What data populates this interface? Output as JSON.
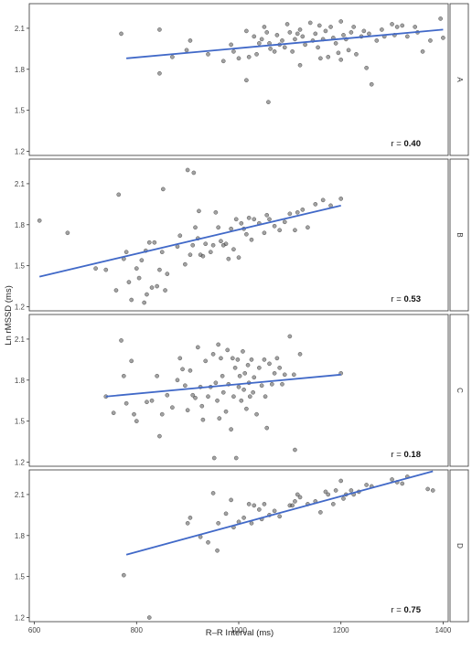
{
  "chart_data": {
    "type": "scatter",
    "title": "",
    "xlabel": "R–R Interval (ms)",
    "ylabel": "Ln rMSSD (ms)",
    "x_ticks": [
      600,
      800,
      1000,
      1200,
      1400
    ],
    "y_ticks": [
      1.2,
      1.5,
      1.8,
      2.1
    ],
    "xlim": [
      590,
      1410
    ],
    "ylim": [
      1.17,
      2.28
    ],
    "grid": false,
    "fit_color": "#4169c8",
    "point_color": "#555555",
    "panels": [
      {
        "strip_label": "A",
        "r_label": "r = ",
        "r_value": "0.40",
        "fit": {
          "x": [
            780,
            1400
          ],
          "y": [
            1.88,
            2.09
          ]
        },
        "points": [
          [
            770,
            2.06
          ],
          [
            845,
            2.09
          ],
          [
            845,
            1.77
          ],
          [
            870,
            1.89
          ],
          [
            898,
            1.94
          ],
          [
            905,
            2.01
          ],
          [
            940,
            1.91
          ],
          [
            970,
            1.86
          ],
          [
            985,
            1.98
          ],
          [
            990,
            1.93
          ],
          [
            1000,
            1.88
          ],
          [
            1015,
            1.72
          ],
          [
            1015,
            2.08
          ],
          [
            1020,
            1.89
          ],
          [
            1030,
            2.04
          ],
          [
            1035,
            1.91
          ],
          [
            1040,
            1.99
          ],
          [
            1045,
            2.02
          ],
          [
            1050,
            2.11
          ],
          [
            1055,
            2.07
          ],
          [
            1058,
            1.56
          ],
          [
            1060,
            1.99
          ],
          [
            1062,
            1.95
          ],
          [
            1070,
            1.93
          ],
          [
            1075,
            2.05
          ],
          [
            1080,
            1.98
          ],
          [
            1085,
            2.01
          ],
          [
            1090,
            1.96
          ],
          [
            1095,
            2.13
          ],
          [
            1100,
            2.07
          ],
          [
            1105,
            1.93
          ],
          [
            1110,
            2.02
          ],
          [
            1115,
            2.06
          ],
          [
            1120,
            2.09
          ],
          [
            1120,
            1.83
          ],
          [
            1125,
            2.04
          ],
          [
            1130,
            1.98
          ],
          [
            1140,
            2.14
          ],
          [
            1145,
            2.01
          ],
          [
            1150,
            2.06
          ],
          [
            1155,
            1.96
          ],
          [
            1158,
            2.12
          ],
          [
            1160,
            1.88
          ],
          [
            1165,
            2.02
          ],
          [
            1170,
            2.08
          ],
          [
            1175,
            1.89
          ],
          [
            1180,
            2.11
          ],
          [
            1185,
            2.03
          ],
          [
            1190,
            1.99
          ],
          [
            1195,
            1.92
          ],
          [
            1200,
            2.15
          ],
          [
            1200,
            1.87
          ],
          [
            1205,
            2.05
          ],
          [
            1210,
            2.02
          ],
          [
            1215,
            1.94
          ],
          [
            1220,
            2.07
          ],
          [
            1225,
            2.11
          ],
          [
            1230,
            1.91
          ],
          [
            1240,
            2.04
          ],
          [
            1245,
            2.08
          ],
          [
            1250,
            1.81
          ],
          [
            1255,
            2.06
          ],
          [
            1260,
            1.69
          ],
          [
            1270,
            2.01
          ],
          [
            1280,
            2.09
          ],
          [
            1285,
            2.04
          ],
          [
            1300,
            2.13
          ],
          [
            1305,
            2.05
          ],
          [
            1310,
            2.11
          ],
          [
            1320,
            2.12
          ],
          [
            1330,
            2.04
          ],
          [
            1345,
            2.11
          ],
          [
            1350,
            2.07
          ],
          [
            1360,
            1.93
          ],
          [
            1375,
            2.01
          ],
          [
            1395,
            2.17
          ],
          [
            1400,
            2.03
          ]
        ]
      },
      {
        "strip_label": "B",
        "r_label": "r = ",
        "r_value": "0.53",
        "fit": {
          "x": [
            610,
            1200
          ],
          "y": [
            1.42,
            1.94
          ]
        },
        "points": [
          [
            610,
            1.83
          ],
          [
            665,
            1.74
          ],
          [
            720,
            1.48
          ],
          [
            740,
            1.47
          ],
          [
            760,
            1.32
          ],
          [
            765,
            2.02
          ],
          [
            775,
            1.55
          ],
          [
            780,
            1.6
          ],
          [
            785,
            1.38
          ],
          [
            790,
            1.25
          ],
          [
            800,
            1.48
          ],
          [
            805,
            1.41
          ],
          [
            810,
            1.54
          ],
          [
            815,
            1.23
          ],
          [
            818,
            1.61
          ],
          [
            820,
            1.29
          ],
          [
            825,
            1.67
          ],
          [
            830,
            1.34
          ],
          [
            835,
            1.67
          ],
          [
            840,
            1.35
          ],
          [
            845,
            1.47
          ],
          [
            850,
            1.6
          ],
          [
            852,
            2.06
          ],
          [
            856,
            1.32
          ],
          [
            860,
            1.44
          ],
          [
            880,
            1.64
          ],
          [
            885,
            1.72
          ],
          [
            895,
            1.51
          ],
          [
            900,
            2.2
          ],
          [
            905,
            1.58
          ],
          [
            910,
            1.65
          ],
          [
            912,
            2.18
          ],
          [
            915,
            1.78
          ],
          [
            920,
            1.7
          ],
          [
            922,
            1.9
          ],
          [
            925,
            1.58
          ],
          [
            930,
            1.57
          ],
          [
            935,
            1.66
          ],
          [
            945,
            1.6
          ],
          [
            950,
            1.65
          ],
          [
            955,
            1.89
          ],
          [
            960,
            1.78
          ],
          [
            965,
            1.68
          ],
          [
            970,
            1.65
          ],
          [
            975,
            1.66
          ],
          [
            980,
            1.55
          ],
          [
            985,
            1.77
          ],
          [
            990,
            1.62
          ],
          [
            995,
            1.84
          ],
          [
            1000,
            1.56
          ],
          [
            1005,
            1.81
          ],
          [
            1010,
            1.77
          ],
          [
            1015,
            1.73
          ],
          [
            1020,
            1.85
          ],
          [
            1025,
            1.69
          ],
          [
            1030,
            1.84
          ],
          [
            1040,
            1.81
          ],
          [
            1050,
            1.74
          ],
          [
            1055,
            1.87
          ],
          [
            1060,
            1.84
          ],
          [
            1070,
            1.79
          ],
          [
            1080,
            1.76
          ],
          [
            1090,
            1.82
          ],
          [
            1100,
            1.88
          ],
          [
            1110,
            1.76
          ],
          [
            1115,
            1.89
          ],
          [
            1125,
            1.91
          ],
          [
            1135,
            1.78
          ],
          [
            1150,
            1.95
          ],
          [
            1165,
            1.98
          ],
          [
            1180,
            1.94
          ],
          [
            1200,
            1.99
          ]
        ]
      },
      {
        "strip_label": "C",
        "r_label": "r = ",
        "r_value": "0.18",
        "fit": {
          "x": [
            740,
            1200
          ],
          "y": [
            1.68,
            1.84
          ]
        },
        "points": [
          [
            740,
            1.68
          ],
          [
            755,
            1.56
          ],
          [
            770,
            2.09
          ],
          [
            775,
            1.83
          ],
          [
            780,
            1.63
          ],
          [
            790,
            1.94
          ],
          [
            795,
            1.55
          ],
          [
            800,
            1.5
          ],
          [
            820,
            1.64
          ],
          [
            830,
            1.65
          ],
          [
            840,
            1.83
          ],
          [
            845,
            1.39
          ],
          [
            850,
            1.55
          ],
          [
            860,
            1.69
          ],
          [
            870,
            1.6
          ],
          [
            880,
            1.8
          ],
          [
            885,
            1.96
          ],
          [
            890,
            1.88
          ],
          [
            895,
            1.76
          ],
          [
            900,
            1.58
          ],
          [
            905,
            1.87
          ],
          [
            910,
            1.69
          ],
          [
            915,
            1.67
          ],
          [
            920,
            2.04
          ],
          [
            925,
            1.75
          ],
          [
            928,
            1.61
          ],
          [
            930,
            1.51
          ],
          [
            935,
            1.94
          ],
          [
            940,
            1.68
          ],
          [
            945,
            1.75
          ],
          [
            950,
            1.99
          ],
          [
            952,
            1.23
          ],
          [
            955,
            1.78
          ],
          [
            958,
            1.65
          ],
          [
            960,
            2.06
          ],
          [
            962,
            1.52
          ],
          [
            965,
            1.96
          ],
          [
            968,
            1.83
          ],
          [
            970,
            1.71
          ],
          [
            975,
            1.57
          ],
          [
            978,
            2.02
          ],
          [
            980,
            1.77
          ],
          [
            985,
            1.44
          ],
          [
            988,
            1.96
          ],
          [
            990,
            1.68
          ],
          [
            993,
            1.89
          ],
          [
            995,
            1.23
          ],
          [
            998,
            1.95
          ],
          [
            1000,
            1.75
          ],
          [
            1002,
            1.83
          ],
          [
            1005,
            1.65
          ],
          [
            1008,
            2.01
          ],
          [
            1010,
            1.73
          ],
          [
            1012,
            1.85
          ],
          [
            1015,
            1.59
          ],
          [
            1018,
            1.91
          ],
          [
            1020,
            1.78
          ],
          [
            1022,
            1.68
          ],
          [
            1025,
            1.95
          ],
          [
            1028,
            1.71
          ],
          [
            1030,
            1.82
          ],
          [
            1035,
            1.55
          ],
          [
            1040,
            1.89
          ],
          [
            1045,
            1.76
          ],
          [
            1050,
            1.95
          ],
          [
            1052,
            1.68
          ],
          [
            1055,
            1.45
          ],
          [
            1060,
            1.92
          ],
          [
            1065,
            1.77
          ],
          [
            1070,
            1.85
          ],
          [
            1075,
            1.96
          ],
          [
            1080,
            1.89
          ],
          [
            1085,
            1.77
          ],
          [
            1090,
            1.84
          ],
          [
            1100,
            2.12
          ],
          [
            1108,
            1.84
          ],
          [
            1110,
            1.29
          ],
          [
            1120,
            1.99
          ],
          [
            1200,
            1.85
          ]
        ]
      },
      {
        "strip_label": "D",
        "r_label": "r = ",
        "r_value": "0.75",
        "fit": {
          "x": [
            780,
            1380
          ],
          "y": [
            1.66,
            2.27
          ]
        },
        "points": [
          [
            775,
            1.51
          ],
          [
            825,
            1.2
          ],
          [
            900,
            1.89
          ],
          [
            905,
            1.93
          ],
          [
            925,
            1.79
          ],
          [
            940,
            1.75
          ],
          [
            950,
            2.11
          ],
          [
            958,
            1.69
          ],
          [
            960,
            1.89
          ],
          [
            975,
            1.96
          ],
          [
            985,
            2.06
          ],
          [
            990,
            1.86
          ],
          [
            1000,
            1.9
          ],
          [
            1010,
            1.93
          ],
          [
            1020,
            2.03
          ],
          [
            1025,
            1.89
          ],
          [
            1030,
            2.02
          ],
          [
            1040,
            1.99
          ],
          [
            1045,
            1.92
          ],
          [
            1050,
            2.03
          ],
          [
            1060,
            1.95
          ],
          [
            1070,
            1.98
          ],
          [
            1080,
            1.94
          ],
          [
            1100,
            2.02
          ],
          [
            1105,
            2.02
          ],
          [
            1110,
            2.05
          ],
          [
            1115,
            2.1
          ],
          [
            1120,
            2.08
          ],
          [
            1135,
            2.03
          ],
          [
            1150,
            2.05
          ],
          [
            1160,
            1.97
          ],
          [
            1170,
            2.12
          ],
          [
            1175,
            2.1
          ],
          [
            1185,
            2.03
          ],
          [
            1190,
            2.13
          ],
          [
            1200,
            2.2
          ],
          [
            1205,
            2.07
          ],
          [
            1210,
            2.1
          ],
          [
            1220,
            2.13
          ],
          [
            1225,
            2.1
          ],
          [
            1235,
            2.12
          ],
          [
            1250,
            2.17
          ],
          [
            1260,
            2.16
          ],
          [
            1300,
            2.21
          ],
          [
            1310,
            2.19
          ],
          [
            1320,
            2.18
          ],
          [
            1330,
            2.23
          ],
          [
            1370,
            2.14
          ],
          [
            1380,
            2.13
          ]
        ]
      }
    ]
  }
}
